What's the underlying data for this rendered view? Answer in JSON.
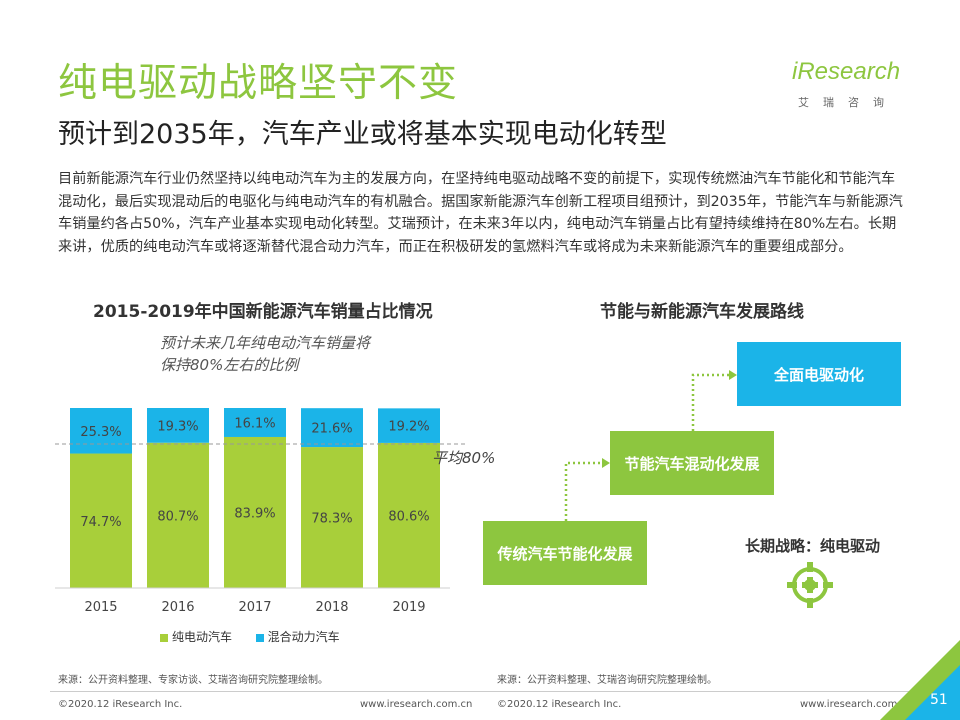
{
  "title": "纯电驱动战略坚守不变",
  "subtitle": "预计到2035年，汽车产业或将基本实现电动化转型",
  "intro": "目前新能源汽车行业仍然坚持以纯电动汽车为主的发展方向，在坚持纯电驱动战略不变的前提下，实现传统燃油汽车节能化和节能汽车混动化，最后实现混动后的电驱化与纯电动汽车的有机融合。据国家新能源汽车创新工程项目组预计，到2035年，节能汽车与新能源汽车销量约各占50%，汽车产业基本实现电动化转型。艾瑞预计，在未来3年以内，纯电动汽车销量占比有望持续维持在80%左右。长期来讲，优质的纯电动汽车或将逐渐替代混合动力汽车，而正在积极研发的氢燃料汽车或将成为未来新能源汽车的重要组成部分。",
  "logo": {
    "word": "iResearch",
    "sub": "艾瑞咨询"
  },
  "chart_section_title": "2015-2019年中国新能源汽车销量占比情况",
  "chart_note": [
    "预计未来几年纯电动汽车销量将",
    "保持80%左右的比例"
  ],
  "avg_label": "平均80%",
  "chart_data": {
    "type": "bar",
    "stacked": true,
    "percent": true,
    "categories": [
      "2015",
      "2016",
      "2017",
      "2018",
      "2019"
    ],
    "series": [
      {
        "name": "纯电动汽车",
        "values": [
          74.7,
          80.7,
          83.9,
          78.3,
          80.6
        ],
        "labels": [
          "74.7%",
          "80.7%",
          "83.9%",
          "78.3%",
          "80.6%"
        ],
        "color": "#a8cf3a"
      },
      {
        "name": "混合动力汽车",
        "values": [
          25.3,
          19.3,
          16.1,
          21.6,
          19.2
        ],
        "labels": [
          "25.3%",
          "19.3%",
          "16.1%",
          "21.6%",
          "19.2%"
        ],
        "color": "#1bb4e8"
      }
    ],
    "reference_line": 80,
    "ylim": [
      0,
      100
    ],
    "legend_position": "bottom"
  },
  "roadmap": {
    "title": "节能与新能源汽车发展路线",
    "steps": [
      "传统汽车节能化发展",
      "节能汽车混动化发展",
      "全面电驱动化"
    ],
    "strategy": "长期战略：纯电驱动"
  },
  "colors": {
    "accent_green": "#8dc63f",
    "accent_blue": "#1bb4e8"
  },
  "footer": {
    "source_left": "来源：公开资料整理、专家访谈、艾瑞咨询研究院整理绘制。",
    "source_right": "来源：公开资料整理、艾瑞咨询研究院整理绘制。",
    "copyright": "©2020.12 iResearch Inc.",
    "url": "www.iresearch.com.cn",
    "page": "51"
  }
}
